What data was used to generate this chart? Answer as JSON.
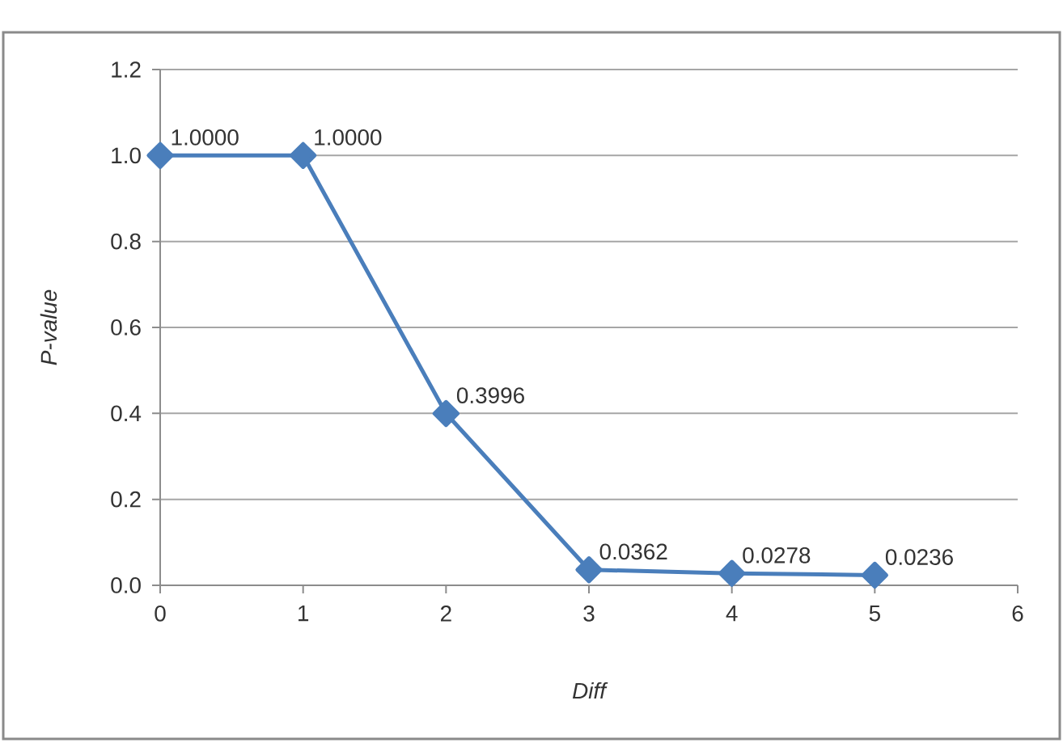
{
  "chart_data": {
    "type": "line",
    "xlabel": "Diff",
    "ylabel": "P-value",
    "x": [
      0,
      1,
      2,
      3,
      4,
      5
    ],
    "values": [
      1,
      1,
      0.3996,
      0.0362,
      0.0278,
      0.0236
    ],
    "value_labels": [
      "1.0000",
      "1.0000",
      "0.3996",
      "0.0362",
      "0.0278",
      "0.0236"
    ],
    "color": "#4a7ebb",
    "marker": "diamond",
    "line_style": "solid",
    "xlim": [
      0,
      6
    ],
    "xticks": [
      0,
      1,
      2,
      3,
      4,
      5,
      6
    ],
    "ylim": [
      0,
      1.2
    ],
    "yticks": [
      {
        "value": 0,
        "label": "0.0"
      },
      0.2,
      0.4,
      0.6,
      0.8,
      {
        "value": 1,
        "label": "1.0"
      },
      1.2
    ],
    "grid": "y"
  }
}
